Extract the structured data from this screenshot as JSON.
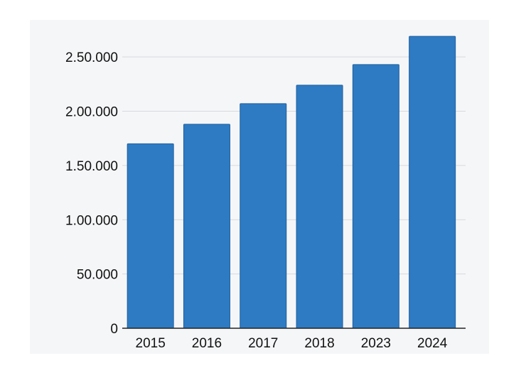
{
  "chart_data": {
    "type": "bar",
    "categories": [
      "2015",
      "2016",
      "2017",
      "2018",
      "2023",
      "2024"
    ],
    "values": [
      170000,
      188000,
      207000,
      224000,
      243000,
      269000
    ],
    "ylim": [
      0,
      275000
    ],
    "y_ticks": [
      0,
      50000,
      100000,
      150000,
      200000,
      250000
    ],
    "y_tick_labels": [
      "0",
      "50.000",
      "1.00.000",
      "1.50.000",
      "2.00.000",
      "2.50.000"
    ],
    "title": "",
    "xlabel": "",
    "ylabel": "",
    "grid": true,
    "legend": "none",
    "colors": {
      "bar": "#2e7bc4",
      "bar_edge": "#1f5f9c",
      "plot_background": "#f5f6f8",
      "gridline": "#d6d9de",
      "axis": "#222222"
    }
  }
}
